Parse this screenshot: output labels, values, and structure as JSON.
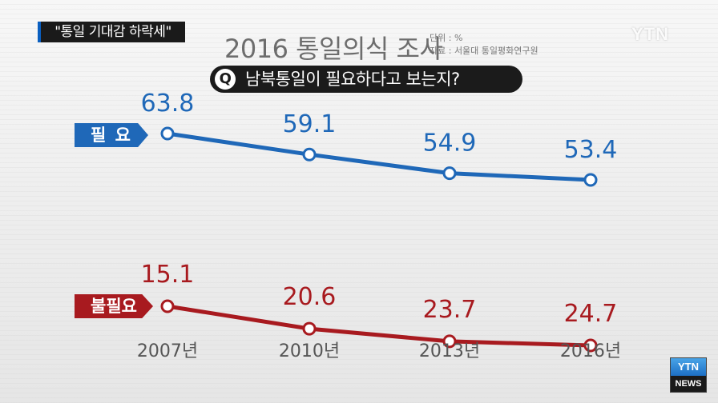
{
  "headline": "\"통일 기대감 하락세\"",
  "logo": "YTN",
  "title": "2016 통일의식 조사",
  "meta": {
    "unit": "단위 : %",
    "source": "자료 : 서울대 통일평화연구원"
  },
  "question": {
    "icon": "Q",
    "text": "남북통일이 필요하다고 보는지?"
  },
  "badge": {
    "top": "YTN",
    "bottom": "NEWS"
  },
  "chart_data": {
    "type": "line",
    "categories": [
      "2007년",
      "2010년",
      "2013년",
      "2016년"
    ],
    "series": [
      {
        "name": "필 요",
        "values": [
          63.8,
          59.1,
          54.9,
          53.4
        ],
        "color": "#1f68b8"
      },
      {
        "name": "불필요",
        "values": [
          15.1,
          20.6,
          23.7,
          24.7
        ],
        "color": "#a81a1f"
      }
    ],
    "grid": false
  }
}
